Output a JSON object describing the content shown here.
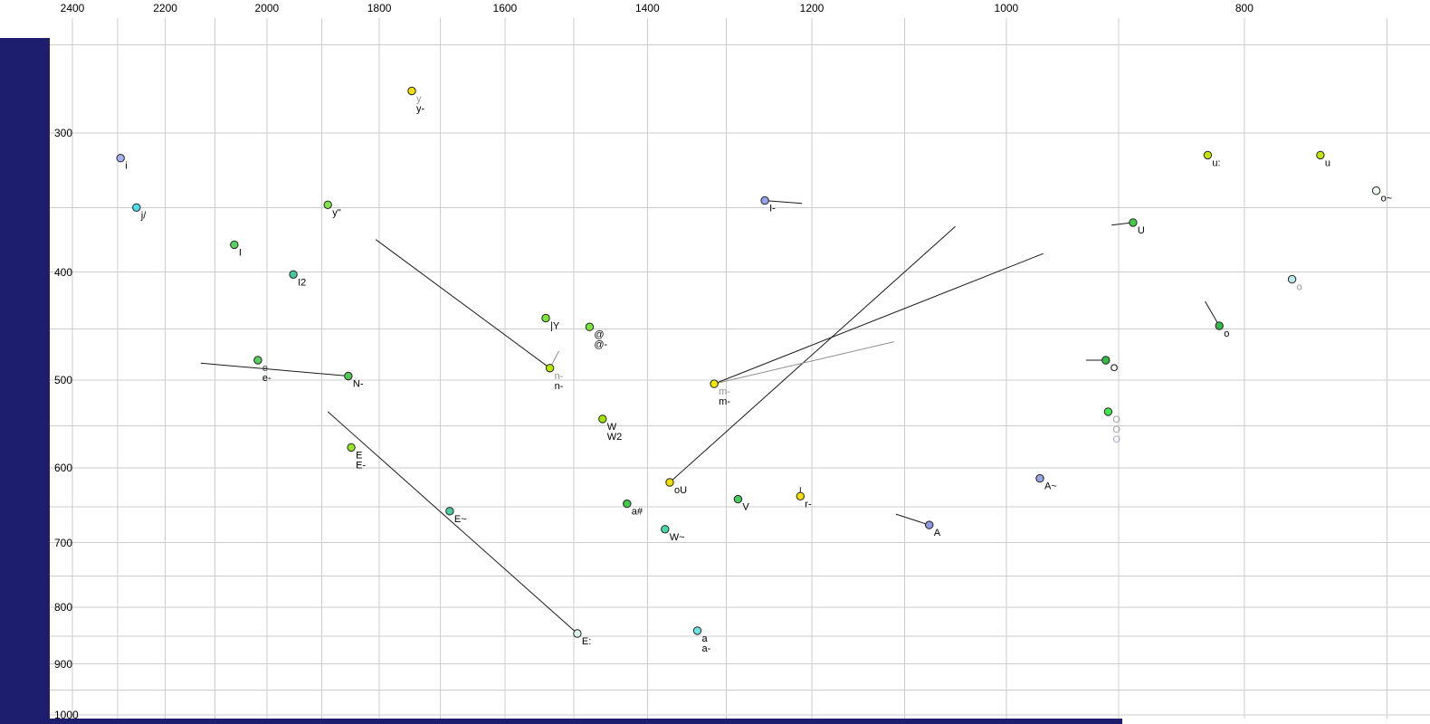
{
  "colors": {
    "background": "#ffffff",
    "grid": "#cccccc",
    "left_bar": "#1e1e6e",
    "bottom_bar": "#1e1e6e",
    "dot_stroke": "#222222",
    "axis_text": "#000000"
  },
  "chart_data": {
    "type": "scatter",
    "description_visible_text_only": "",
    "x_axis": {
      "ticks": [
        2400,
        2200,
        2000,
        1800,
        1600,
        1400,
        1200,
        1000,
        800
      ],
      "scale": "log",
      "direction": "decreasing-rightward",
      "grid_step": 100
    },
    "y_axis": {
      "ticks": [
        300,
        400,
        500,
        600,
        700,
        800,
        900,
        1000
      ],
      "scale": "log",
      "direction": "increasing-downward",
      "grid_step": 50
    },
    "points": [
      {
        "f2": 1746,
        "f1": 275,
        "fill": "#f0e000",
        "labels": [
          {
            "text": "y",
            "color": "#909090"
          },
          {
            "text": "y-",
            "color": "#000000"
          }
        ]
      },
      {
        "f2": 2294,
        "f1": 316,
        "fill": "#a8b0f0",
        "labels": [
          {
            "text": "i",
            "color": "#000000"
          }
        ]
      },
      {
        "f2": 2260,
        "f1": 350,
        "fill": "#50dcec",
        "labels": [
          {
            "text": "j/",
            "color": "#000000"
          }
        ]
      },
      {
        "f2": 1889,
        "f1": 348,
        "fill": "#84e04c",
        "labels": [
          {
            "text": "y\"",
            "color": "#000000"
          }
        ]
      },
      {
        "f2": 2062,
        "f1": 378,
        "fill": "#58d060",
        "labels": [
          {
            "text": "I",
            "color": "#000000"
          }
        ]
      },
      {
        "f2": 1951,
        "f1": 402,
        "fill": "#48c8a0",
        "labels": [
          {
            "text": "I2",
            "color": "#000000"
          }
        ]
      },
      {
        "f2": 1540,
        "f1": 440,
        "fill": "#78e43c",
        "labels": [
          {
            "text": "|Y",
            "color": "#000000"
          }
        ]
      },
      {
        "f2": 1478,
        "f1": 448,
        "fill": "#78e43c",
        "labels": [
          {
            "text": "@",
            "color": "#000000"
          },
          {
            "text": "@-",
            "color": "#000000"
          }
        ]
      },
      {
        "f2": 1534,
        "f1": 488,
        "fill": "#b8e800",
        "labels": [
          {
            "text": "n-",
            "color": "#909090"
          },
          {
            "text": "n-",
            "color": "#000000"
          }
        ]
      },
      {
        "f2": 2017,
        "f1": 480,
        "fill": "#58d060",
        "labels": [
          {
            "text": "e",
            "color": "#404040"
          },
          {
            "text": "e-",
            "color": "#000000"
          }
        ]
      },
      {
        "f2": 1853,
        "f1": 496,
        "fill": "#50c858",
        "labels": [
          {
            "text": "N-",
            "color": "#000000"
          }
        ]
      },
      {
        "f2": 1848,
        "f1": 575,
        "fill": "#98e428",
        "labels": [
          {
            "text": "E",
            "color": "#000000"
          },
          {
            "text": "E-",
            "color": "#000000"
          }
        ]
      },
      {
        "f2": 1685,
        "f1": 656,
        "fill": "#48cca4",
        "labels": [
          {
            "text": "E~",
            "color": "#000000"
          }
        ]
      },
      {
        "f2": 1495,
        "f1": 845,
        "fill": "#d8f4ec",
        "labels": [
          {
            "text": "E:",
            "color": "#000000"
          }
        ]
      },
      {
        "f2": 1336,
        "f1": 840,
        "fill": "#6ce4e4",
        "labels": [
          {
            "text": "a",
            "color": "#000000"
          },
          {
            "text": "a-",
            "color": "#000000"
          }
        ]
      },
      {
        "f2": 1377,
        "f1": 681,
        "fill": "#48d8a8",
        "labels": [
          {
            "text": "W~",
            "color": "#000000"
          }
        ]
      },
      {
        "f2": 1427,
        "f1": 646,
        "fill": "#44c84c",
        "labels": [
          {
            "text": "a#",
            "color": "#000000"
          }
        ]
      },
      {
        "f2": 1460,
        "f1": 542,
        "fill": "#a4e400",
        "labels": [
          {
            "text": "W",
            "color": "#000000"
          },
          {
            "text": "W2",
            "color": "#000000"
          }
        ]
      },
      {
        "f2": 1371,
        "f1": 618,
        "fill": "#f0e000",
        "labels": [
          {
            "text": "oU",
            "color": "#000000"
          }
        ]
      },
      {
        "f2": 1315,
        "f1": 504,
        "fill": "#ecec00",
        "labels": [
          {
            "text": "m-",
            "color": "#909090"
          },
          {
            "text": "m-",
            "color": "#000000"
          }
        ]
      },
      {
        "f2": 1254,
        "f1": 345,
        "fill": "#96a0e8",
        "labels": [
          {
            "text": "I-",
            "color": "#000000"
          }
        ]
      },
      {
        "f2": 1286,
        "f1": 640,
        "fill": "#48c860",
        "labels": [
          {
            "text": "V",
            "color": "#000000"
          }
        ]
      },
      {
        "f2": 1213,
        "f1": 636,
        "fill": "#f0e000",
        "labels": [
          {
            "text": "r-",
            "color": "#000000"
          }
        ]
      },
      {
        "f2": 1075,
        "f1": 675,
        "fill": "#8c98dc",
        "labels": [
          {
            "text": "A",
            "color": "#000000"
          }
        ]
      },
      {
        "f2": 969,
        "f1": 613,
        "fill": "#96a4e8",
        "labels": [
          {
            "text": "A~",
            "color": "#000000"
          }
        ]
      },
      {
        "f2": 828,
        "f1": 314,
        "fill": "#c4e400",
        "labels": [
          {
            "text": "u:",
            "color": "#000000"
          }
        ]
      },
      {
        "f2": 745,
        "f1": 314,
        "fill": "#c4e400",
        "labels": [
          {
            "text": "u",
            "color": "#000000"
          }
        ]
      },
      {
        "f2": 707,
        "f1": 338,
        "fill": "#eef8ee",
        "labels": [
          {
            "text": "o~",
            "color": "#000000"
          }
        ]
      },
      {
        "f2": 888,
        "f1": 361,
        "fill": "#44c84c",
        "labels": [
          {
            "text": "U",
            "color": "#000000"
          }
        ]
      },
      {
        "f2": 765,
        "f1": 406,
        "fill": "#c0e8ec",
        "labels": [
          {
            "text": "o",
            "color": "#909090"
          }
        ]
      },
      {
        "f2": 819,
        "f1": 447,
        "fill": "#34b848",
        "labels": [
          {
            "text": "o",
            "color": "#000000"
          }
        ]
      },
      {
        "f2": 911,
        "f1": 480,
        "fill": "#34b848",
        "labels": [
          {
            "text": "O",
            "color": "#000000"
          }
        ]
      },
      {
        "f2": 909,
        "f1": 534,
        "fill": "#44e44c",
        "labels": [
          {
            "text": "O",
            "color": "#a0a0a0"
          },
          {
            "text": "O",
            "color": "#a0a0a0"
          },
          {
            "text": "O",
            "color": "#a8a8c8"
          }
        ]
      }
    ],
    "segments": [
      {
        "from": [
          1806,
          374
        ],
        "to": [
          1534,
          488
        ],
        "color": "#1a1a1a"
      },
      {
        "from": [
          2128,
          483
        ],
        "to": [
          1853,
          496
        ],
        "color": "#1a1a1a"
      },
      {
        "from": [
          1889,
          534
        ],
        "to": [
          1495,
          845
        ],
        "color": "#1a1a1a"
      },
      {
        "from": [
          1371,
          618
        ],
        "to": [
          1049,
          364
        ],
        "color": "#1a1a1a"
      },
      {
        "from": [
          1315,
          504
        ],
        "to": [
          966,
          385
        ],
        "color": "#1a1a1a"
      },
      {
        "from": [
          1315,
          504
        ],
        "to": [
          1111,
          462
        ],
        "color": "#909090"
      },
      {
        "from": [
          1254,
          345
        ],
        "to": [
          1211,
          347
        ],
        "color": "#1a1a1a"
      },
      {
        "from": [
          906,
          363
        ],
        "to": [
          888,
          361
        ],
        "color": "#1a1a1a"
      },
      {
        "from": [
          928,
          480
        ],
        "to": [
          911,
          480
        ],
        "color": "#1a1a1a"
      },
      {
        "from": [
          830,
          425
        ],
        "to": [
          819,
          447
        ],
        "color": "#1a1a1a"
      },
      {
        "from": [
          1109,
          660
        ],
        "to": [
          1075,
          675
        ],
        "color": "#1a1a1a"
      },
      {
        "from": [
          1213,
          624
        ],
        "to": [
          1213,
          636
        ],
        "color": "#1a1a1a"
      },
      {
        "from": [
          1534,
          488
        ],
        "to": [
          1521,
          471
        ],
        "color": "#909090"
      }
    ]
  }
}
